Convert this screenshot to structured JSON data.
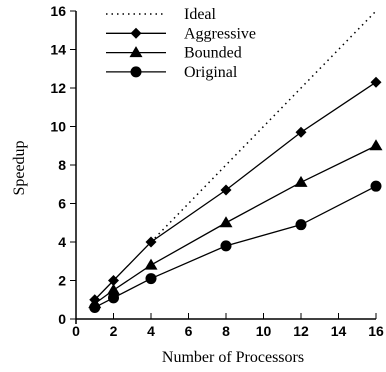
{
  "chart_data": {
    "type": "line",
    "title": "",
    "xlabel": "Number of Processors",
    "ylabel": "Speedup",
    "xlim": [
      0,
      16
    ],
    "ylim": [
      0,
      16
    ],
    "x_ticks": [
      "0",
      "2",
      "4",
      "6",
      "8",
      "10",
      "12",
      "14",
      "16"
    ],
    "y_ticks": [
      "0",
      "2",
      "4",
      "6",
      "8",
      "10",
      "12",
      "14",
      "16"
    ],
    "grid": false,
    "legend_position": "top-left",
    "series": [
      {
        "name": "Ideal",
        "marker": "none",
        "line": "dotted",
        "x": [
          4,
          16
        ],
        "y": [
          4,
          16
        ]
      },
      {
        "name": "Aggressive",
        "marker": "diamond",
        "line": "solid",
        "x": [
          1,
          2,
          4,
          8,
          12,
          16
        ],
        "y": [
          1.0,
          2.0,
          4.0,
          6.7,
          9.7,
          12.3
        ]
      },
      {
        "name": "Bounded",
        "marker": "triangle",
        "line": "solid",
        "x": [
          1,
          2,
          4,
          8,
          12,
          16
        ],
        "y": [
          0.8,
          1.5,
          2.8,
          5.0,
          7.1,
          9.0
        ]
      },
      {
        "name": "Original",
        "marker": "circle",
        "line": "solid",
        "x": [
          1,
          2,
          4,
          8,
          12,
          16
        ],
        "y": [
          0.6,
          1.1,
          2.1,
          3.8,
          4.9,
          6.9
        ]
      }
    ]
  }
}
